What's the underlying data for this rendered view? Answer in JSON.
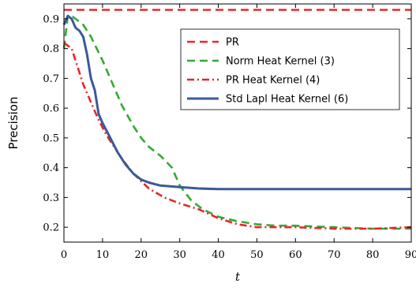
{
  "chart_data": {
    "type": "line",
    "xlabel": "t",
    "ylabel": "Precision",
    "xlim": [
      0,
      90
    ],
    "ylim": [
      0.15,
      0.95
    ],
    "x_ticks": [
      0,
      10,
      20,
      30,
      40,
      50,
      60,
      70,
      80,
      90
    ],
    "y_ticks": [
      0.2,
      0.3,
      0.4,
      0.5,
      0.6,
      0.7,
      0.8,
      0.9
    ],
    "grid": false,
    "legend_position": "top-right",
    "series": [
      {
        "name": "PR",
        "color": "#e8262a",
        "style": "dashed",
        "points": [
          [
            0,
            0.93
          ],
          [
            90,
            0.93
          ]
        ]
      },
      {
        "name": "Norm Heat Kernel (3)",
        "color": "#33aa33",
        "style": "dashed",
        "points": [
          [
            0,
            0.8
          ],
          [
            1,
            0.91
          ],
          [
            2,
            0.91
          ],
          [
            3,
            0.9
          ],
          [
            5,
            0.88
          ],
          [
            7,
            0.84
          ],
          [
            10,
            0.76
          ],
          [
            12,
            0.7
          ],
          [
            15,
            0.61
          ],
          [
            18,
            0.54
          ],
          [
            20,
            0.5
          ],
          [
            22,
            0.47
          ],
          [
            25,
            0.44
          ],
          [
            28,
            0.4
          ],
          [
            30,
            0.34
          ],
          [
            33,
            0.29
          ],
          [
            36,
            0.26
          ],
          [
            40,
            0.235
          ],
          [
            45,
            0.22
          ],
          [
            50,
            0.21
          ],
          [
            55,
            0.205
          ],
          [
            60,
            0.205
          ],
          [
            70,
            0.2
          ],
          [
            80,
            0.195
          ],
          [
            90,
            0.195
          ]
        ]
      },
      {
        "name": "PR Heat Kernel (4)",
        "color": "#e8262a",
        "style": "dashdot",
        "points": [
          [
            0,
            0.82
          ],
          [
            1,
            0.81
          ],
          [
            2,
            0.8
          ],
          [
            3,
            0.76
          ],
          [
            5,
            0.68
          ],
          [
            7,
            0.62
          ],
          [
            9,
            0.56
          ],
          [
            11,
            0.51
          ],
          [
            13,
            0.47
          ],
          [
            15,
            0.43
          ],
          [
            18,
            0.38
          ],
          [
            22,
            0.33
          ],
          [
            26,
            0.3
          ],
          [
            30,
            0.28
          ],
          [
            35,
            0.26
          ],
          [
            40,
            0.23
          ],
          [
            45,
            0.21
          ],
          [
            50,
            0.2
          ],
          [
            55,
            0.2
          ],
          [
            60,
            0.2
          ],
          [
            70,
            0.195
          ],
          [
            80,
            0.195
          ],
          [
            90,
            0.2
          ]
        ]
      },
      {
        "name": "Std Lapl Heat Kernel (6)",
        "color": "#3a5a99",
        "style": "solid",
        "points": [
          [
            0,
            0.88
          ],
          [
            1,
            0.91
          ],
          [
            2,
            0.9
          ],
          [
            3,
            0.87
          ],
          [
            4,
            0.86
          ],
          [
            5,
            0.84
          ],
          [
            6,
            0.78
          ],
          [
            7,
            0.7
          ],
          [
            8,
            0.66
          ],
          [
            9,
            0.58
          ],
          [
            10,
            0.55
          ],
          [
            12,
            0.5
          ],
          [
            14,
            0.45
          ],
          [
            16,
            0.41
          ],
          [
            18,
            0.38
          ],
          [
            20,
            0.36
          ],
          [
            22,
            0.35
          ],
          [
            25,
            0.34
          ],
          [
            30,
            0.335
          ],
          [
            35,
            0.33
          ],
          [
            40,
            0.328
          ],
          [
            50,
            0.328
          ],
          [
            60,
            0.328
          ],
          [
            70,
            0.328
          ],
          [
            80,
            0.328
          ],
          [
            90,
            0.328
          ]
        ]
      }
    ]
  }
}
